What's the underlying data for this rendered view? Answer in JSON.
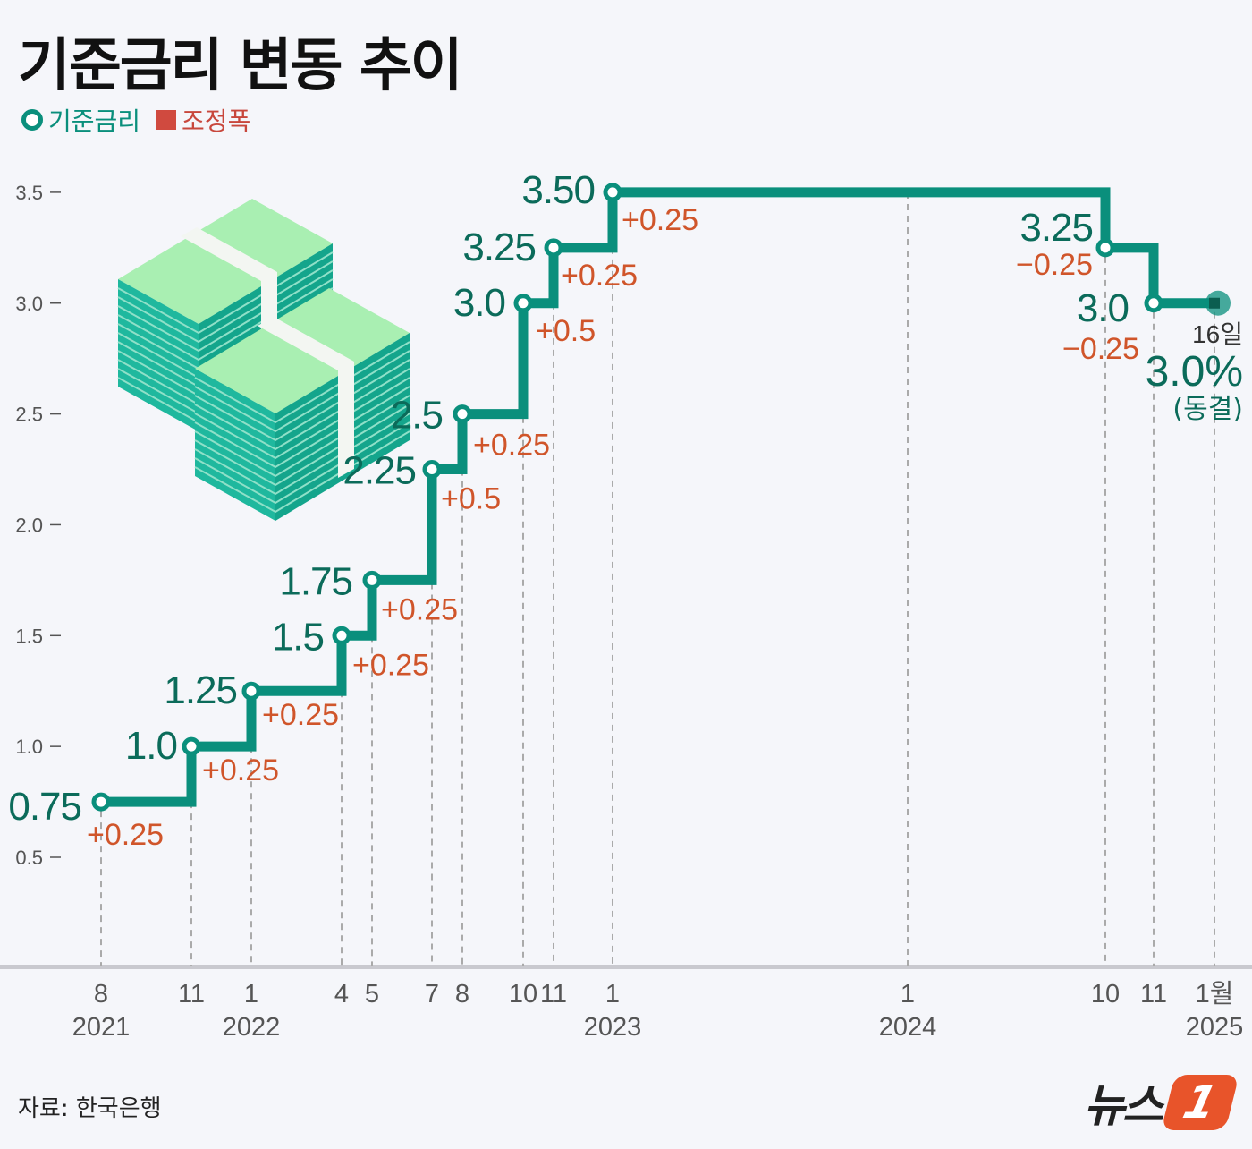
{
  "title": "기준금리 변동 추이",
  "legend": {
    "rate": "기준금리",
    "change": "조정폭"
  },
  "source": "자료: 한국은행",
  "logo": {
    "text": "뉴스",
    "mark": "1"
  },
  "colors": {
    "rate": "#0a8f7c",
    "change": "#d0552a",
    "rate_label": "#0b6b5a",
    "axis": "#555555"
  },
  "chart_data": {
    "type": "line",
    "step": true,
    "title": "기준금리 변동 추이",
    "ylim": [
      0.5,
      3.5
    ],
    "yticks": [
      "3.5",
      "3.0",
      "2.5",
      "2.0",
      "1.5",
      "1.0",
      "0.5"
    ],
    "x_ticks": [
      {
        "month": "8",
        "year": "2021"
      },
      {
        "month": "11",
        "year": ""
      },
      {
        "month": "1",
        "year": "2022"
      },
      {
        "month": "4",
        "year": ""
      },
      {
        "month": "5",
        "year": ""
      },
      {
        "month": "7",
        "year": ""
      },
      {
        "month": "8",
        "year": ""
      },
      {
        "month": "10",
        "year": ""
      },
      {
        "month": "11",
        "year": ""
      },
      {
        "month": "1",
        "year": "2023"
      },
      {
        "month": "1",
        "year": "2024"
      },
      {
        "month": "10",
        "year": ""
      },
      {
        "month": "11",
        "year": ""
      },
      {
        "month": "1월",
        "year": "2025"
      }
    ],
    "points": [
      {
        "date": "2021-08",
        "value": 0.75,
        "label": "0.75",
        "change": "+0.25"
      },
      {
        "date": "2021-11",
        "value": 1.0,
        "label": "1.0",
        "change": "+0.25"
      },
      {
        "date": "2022-01",
        "value": 1.25,
        "label": "1.25",
        "change": "+0.25"
      },
      {
        "date": "2022-04",
        "value": 1.5,
        "label": "1.5",
        "change": "+0.25"
      },
      {
        "date": "2022-05",
        "value": 1.75,
        "label": "1.75",
        "change": "+0.25"
      },
      {
        "date": "2022-07",
        "value": 2.25,
        "label": "2.25",
        "change": "+0.5"
      },
      {
        "date": "2022-08",
        "value": 2.5,
        "label": "2.5",
        "change": "+0.25"
      },
      {
        "date": "2022-10",
        "value": 3.0,
        "label": "3.0",
        "change": "+0.5"
      },
      {
        "date": "2022-11",
        "value": 3.25,
        "label": "3.25",
        "change": "+0.25"
      },
      {
        "date": "2023-01",
        "value": 3.5,
        "label": "3.50",
        "change": "+0.25"
      },
      {
        "date": "2024-10",
        "value": 3.25,
        "label": "3.25",
        "change": "−0.25"
      },
      {
        "date": "2024-11",
        "value": 3.0,
        "label": "3.0",
        "change": "−0.25"
      },
      {
        "date": "2025-01-16",
        "value": 3.0,
        "label": "",
        "change": ""
      }
    ],
    "final": {
      "day": "16일",
      "value": "3.0%",
      "note": "(동결)"
    }
  }
}
